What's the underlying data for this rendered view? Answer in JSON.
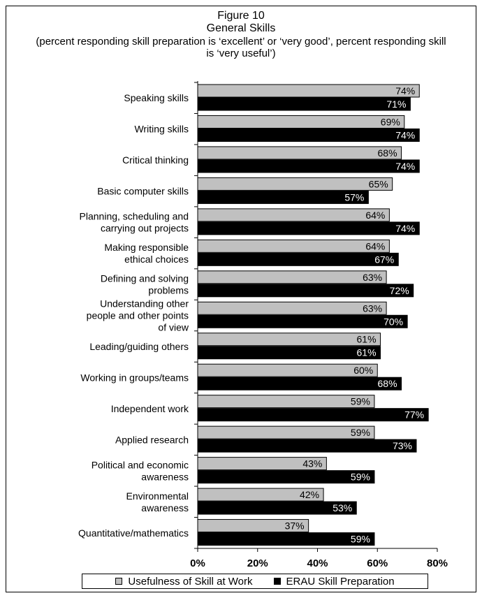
{
  "chart_data": {
    "type": "bar",
    "orientation": "horizontal",
    "title": "Figure 10",
    "subtitle": "General Skills",
    "subtitle2": "(percent responding skill preparation is ‘excellent’ or ‘very good’, percent responding skill is ‘very useful’)",
    "xlim": [
      0,
      80
    ],
    "xticks": [
      "0%",
      "20%",
      "40%",
      "60%",
      "80%"
    ],
    "xtick_values": [
      0,
      20,
      40,
      60,
      80
    ],
    "grid": false,
    "legend_position": "bottom",
    "categories": [
      [
        "Speaking skills"
      ],
      [
        "Writing skills"
      ],
      [
        "Critical thinking"
      ],
      [
        "Basic computer skills"
      ],
      [
        "Planning, scheduling and",
        "carrying out projects"
      ],
      [
        "Making  responsible",
        "ethical choices"
      ],
      [
        "Defining and solving",
        "problems"
      ],
      [
        "Understanding other",
        "people and other points",
        "of view"
      ],
      [
        "Leading/guiding others"
      ],
      [
        "Working in groups/teams"
      ],
      [
        "Independent work"
      ],
      [
        "Applied research"
      ],
      [
        "Political and economic",
        "awareness"
      ],
      [
        "Environmental",
        "awareness"
      ],
      [
        "Quantitative/mathematics"
      ]
    ],
    "series": [
      {
        "name": "Usefulness of Skill at Work",
        "color": "#c0c0c0",
        "label_color": "#000000",
        "values": [
          74,
          69,
          68,
          65,
          64,
          64,
          63,
          63,
          61,
          60,
          59,
          59,
          43,
          42,
          37
        ]
      },
      {
        "name": "ERAU Skill Preparation",
        "color": "#000000",
        "label_color": "#ffffff",
        "values": [
          71,
          74,
          74,
          57,
          74,
          67,
          72,
          70,
          61,
          68,
          77,
          73,
          59,
          53,
          59
        ]
      }
    ],
    "value_suffix": "%"
  }
}
